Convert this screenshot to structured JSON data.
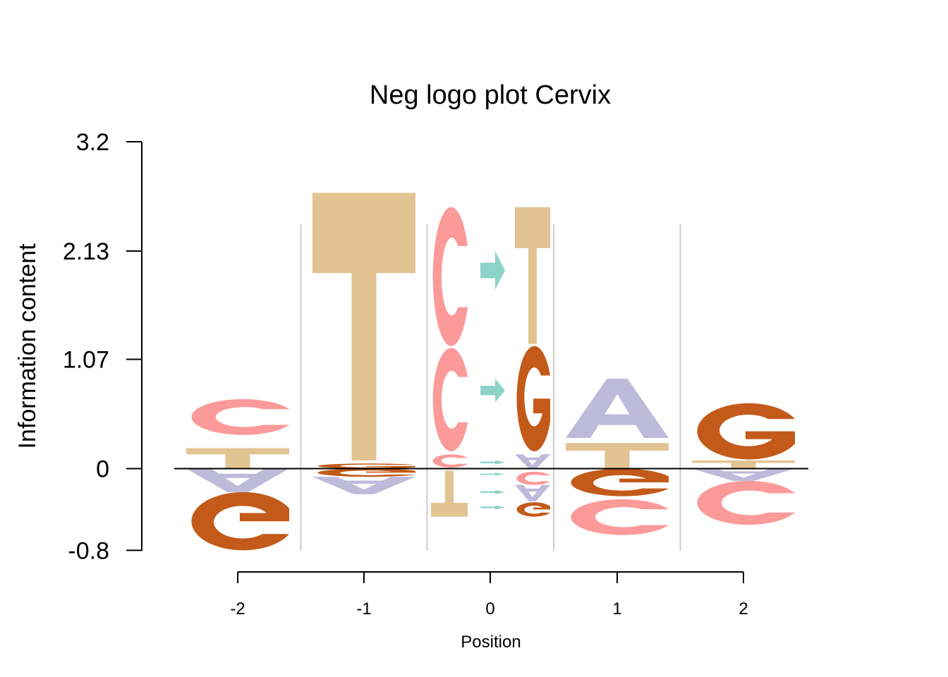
{
  "chart_data": {
    "type": "sequence-logo",
    "title": "Neg logo plot Cervix",
    "xlabel": "Position",
    "ylabel": "Information content",
    "ylim": [
      -0.8,
      3.2
    ],
    "yticks": [
      "3.2",
      "2.13",
      "1.07",
      "0",
      "-0.8"
    ],
    "ytick_values": [
      3.2,
      2.13,
      1.07,
      0,
      -0.8
    ],
    "positions": [
      "-2",
      "-1",
      "0",
      "1",
      "2"
    ],
    "colors": {
      "A": "#bebada",
      "C": "#fb9a99",
      "G": "#c35a1a",
      "T": "#e2c493",
      "arrow": "#8dd3c7"
    },
    "stacks": [
      {
        "position": "-2",
        "half": "full",
        "above": [
          {
            "letter": "T",
            "bottom": 0,
            "top": 0.2
          },
          {
            "letter": "C",
            "bottom": 0.33,
            "top": 0.68
          }
        ],
        "below": [
          {
            "letter": "A",
            "top": 0,
            "bottom": -0.23
          },
          {
            "letter": "G",
            "top": -0.23,
            "bottom": -0.8
          }
        ]
      },
      {
        "position": "-1",
        "half": "full",
        "above": [
          {
            "letter": "G",
            "bottom": 0,
            "top": 0.05
          },
          {
            "letter": "T",
            "bottom": 0.08,
            "top": 2.7
          }
        ],
        "below": [
          {
            "letter": "G",
            "top": 0,
            "bottom": -0.08
          },
          {
            "letter": "A",
            "top": -0.08,
            "bottom": -0.25
          }
        ]
      },
      {
        "position": "0",
        "half": "left",
        "above": [
          {
            "letter": "C",
            "bottom": 0.17,
            "top": 1.18
          },
          {
            "letter": "C",
            "bottom": 1.2,
            "top": 2.56
          }
        ],
        "below": [
          {
            "letter": "C",
            "top": 0.14,
            "bottom": 0.01
          },
          {
            "letter": "T",
            "top": -0.02,
            "bottom": -0.47
          }
        ]
      },
      {
        "position": "0",
        "half": "right",
        "above": [
          {
            "letter": "G",
            "bottom": 0.17,
            "top": 1.2
          },
          {
            "letter": "T",
            "bottom": 1.22,
            "top": 2.56
          }
        ],
        "below": [
          {
            "letter": "A",
            "top": 0.14,
            "bottom": 0.0
          },
          {
            "letter": "C",
            "top": -0.03,
            "bottom": -0.16
          },
          {
            "letter": "A",
            "top": -0.16,
            "bottom": -0.32
          },
          {
            "letter": "G",
            "top": -0.33,
            "bottom": -0.47
          }
        ]
      },
      {
        "position": "1",
        "half": "full",
        "above": [
          {
            "letter": "T",
            "bottom": 0,
            "top": 0.25
          },
          {
            "letter": "A",
            "bottom": 0.3,
            "top": 0.88
          }
        ],
        "below": [
          {
            "letter": "G",
            "top": 0,
            "bottom": -0.27
          },
          {
            "letter": "C",
            "top": -0.3,
            "bottom": -0.65
          }
        ]
      },
      {
        "position": "2",
        "half": "full",
        "above": [
          {
            "letter": "T",
            "bottom": 0,
            "top": 0.08
          },
          {
            "letter": "G",
            "bottom": 0.09,
            "top": 0.64
          }
        ],
        "below": [
          {
            "letter": "A",
            "top": 0,
            "bottom": -0.12
          },
          {
            "letter": "C",
            "top": -0.12,
            "bottom": -0.55
          }
        ]
      }
    ],
    "arrows": [
      {
        "above": true,
        "bottom": 1.75,
        "top": 2.13
      },
      {
        "above": true,
        "bottom": 0.65,
        "top": 0.88
      },
      {
        "above": true,
        "bottom": 0.04,
        "top": 0.08
      },
      {
        "above": false,
        "bottom": -0.07,
        "top": -0.04
      },
      {
        "above": false,
        "bottom": -0.25,
        "top": -0.21
      },
      {
        "above": false,
        "bottom": -0.4,
        "top": -0.36
      }
    ]
  }
}
